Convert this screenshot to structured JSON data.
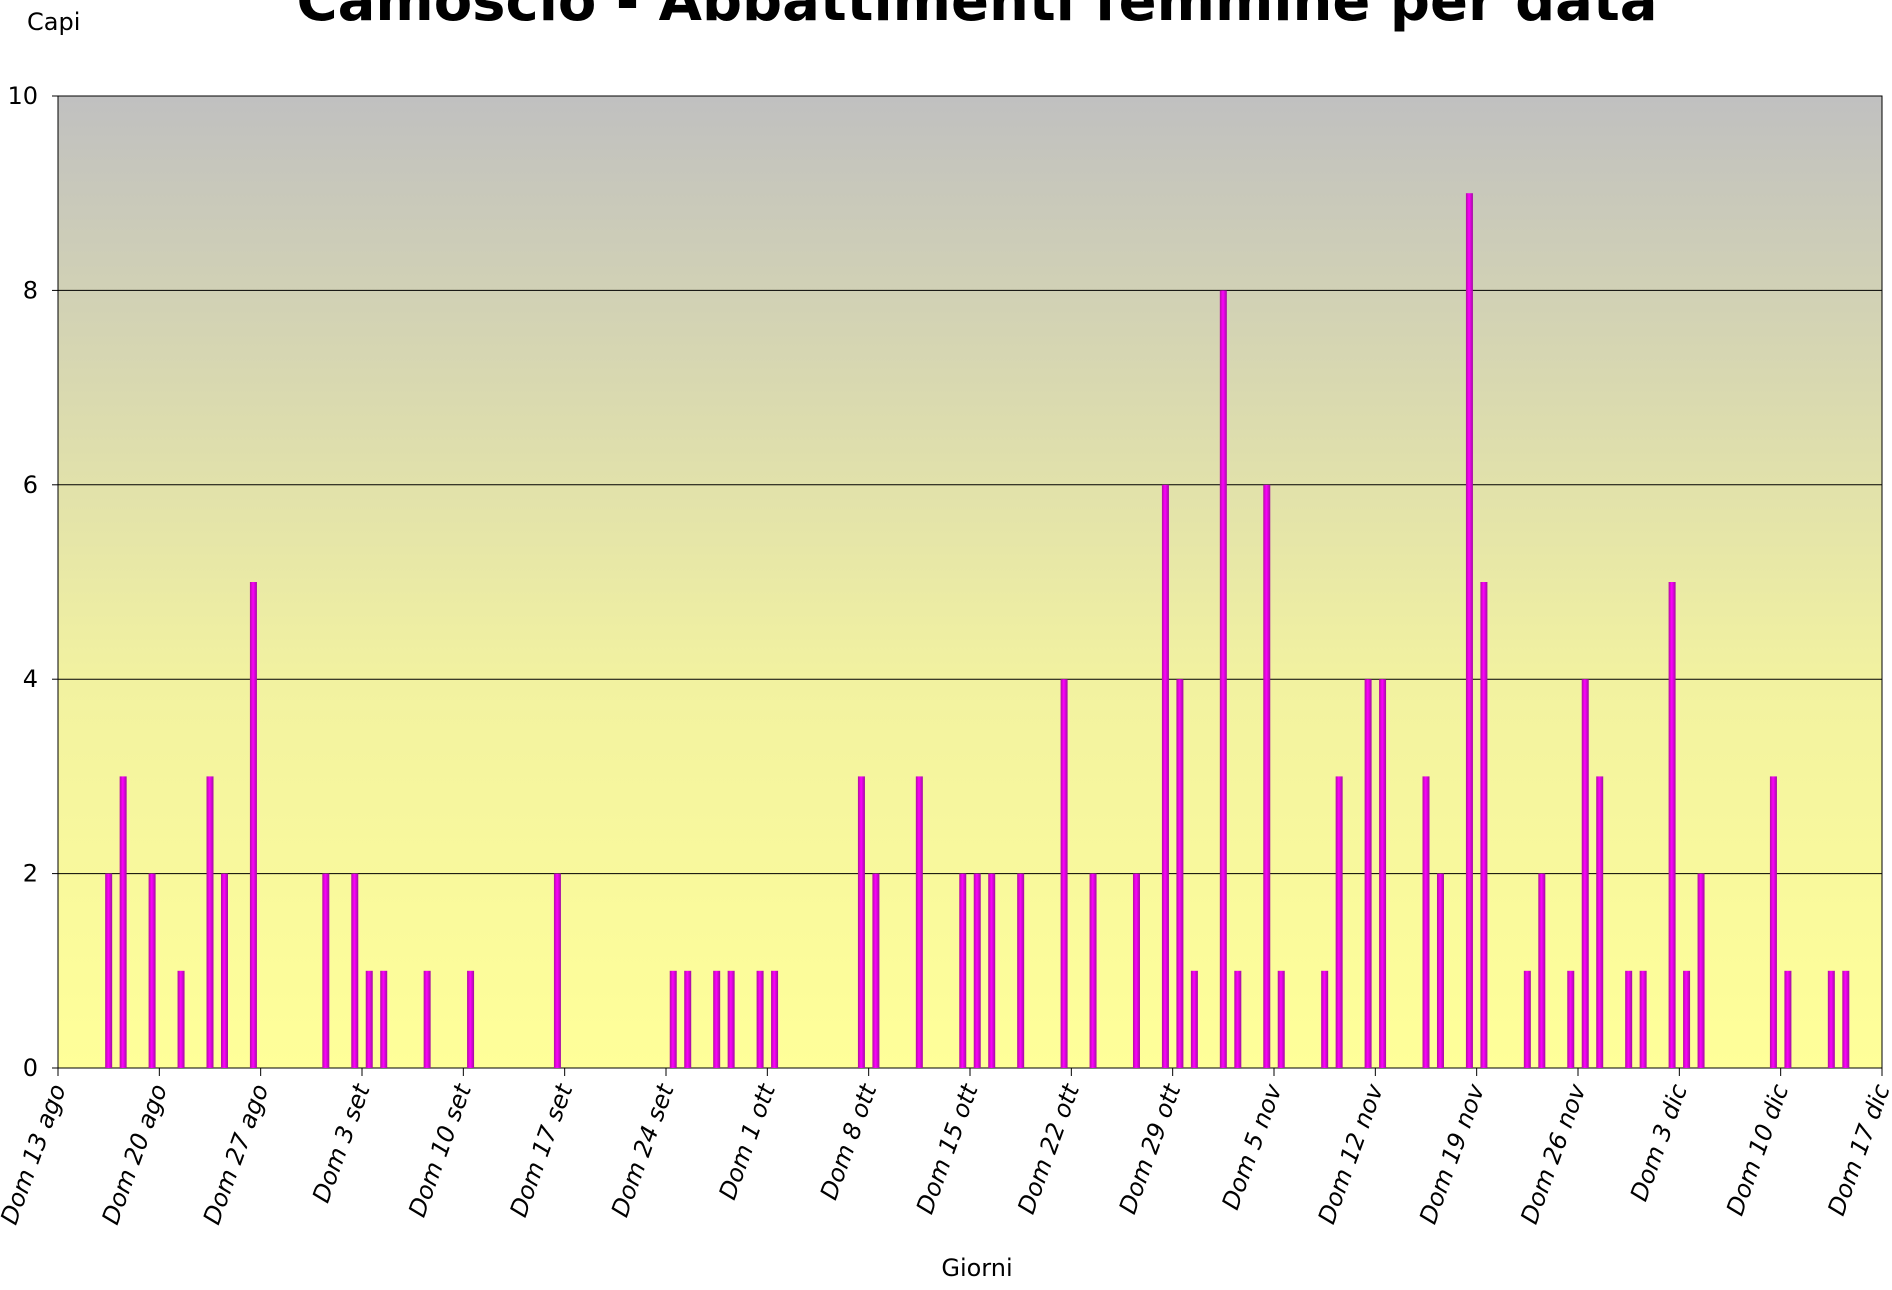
{
  "chart_data": {
    "type": "bar",
    "title": "Camoscio - Abbattimenti femmine per data",
    "y_label": "Capi",
    "x_label": "Giorni",
    "xlim": [
      0,
      126
    ],
    "xticks": [
      {
        "value": 0,
        "label": "Dom 13 ago"
      },
      {
        "value": 7,
        "label": "Dom 20 ago"
      },
      {
        "value": 14,
        "label": "Dom 27 ago"
      },
      {
        "value": 21,
        "label": "Dom 3 set"
      },
      {
        "value": 28,
        "label": "Dom 10 set"
      },
      {
        "value": 35,
        "label": "Dom 17 set"
      },
      {
        "value": 42,
        "label": "Dom 24 set"
      },
      {
        "value": 49,
        "label": "Dom 1 ott"
      },
      {
        "value": 56,
        "label": "Dom 8 ott"
      },
      {
        "value": 63,
        "label": "Dom 15 ott"
      },
      {
        "value": 70,
        "label": "Dom 22 ott"
      },
      {
        "value": 77,
        "label": "Dom 29 ott"
      },
      {
        "value": 84,
        "label": "Dom 5 nov"
      },
      {
        "value": 91,
        "label": "Dom 12 nov"
      },
      {
        "value": 98,
        "label": "Dom 19 nov"
      },
      {
        "value": 105,
        "label": "Dom 26 nov"
      },
      {
        "value": 112,
        "label": "Dom 3 dic"
      },
      {
        "value": 119,
        "label": "Dom 10 dic"
      },
      {
        "value": 126,
        "label": "Dom 17 dic"
      }
    ],
    "ylim": [
      0,
      10
    ],
    "yticks": [
      0,
      2,
      4,
      6,
      8,
      10
    ],
    "grid": true,
    "x": [
      3.5,
      4.5,
      6.5,
      8.5,
      10.5,
      11.5,
      13.5,
      18.5,
      20.5,
      21.5,
      22.5,
      25.5,
      28.5,
      34.5,
      42.5,
      43.5,
      45.5,
      46.5,
      48.5,
      49.5,
      55.5,
      56.5,
      59.5,
      62.5,
      63.5,
      64.5,
      66.5,
      69.5,
      71.5,
      74.5,
      76.5,
      77.5,
      78.5,
      80.5,
      81.5,
      83.5,
      84.5,
      87.5,
      88.5,
      90.5,
      91.5,
      94.5,
      95.5,
      97.5,
      98.5,
      101.5,
      102.5,
      104.5,
      105.5,
      106.5,
      108.5,
      109.5,
      111.5,
      112.5,
      113.5,
      118.5,
      119.5,
      122.5,
      123.5
    ],
    "values": [
      2,
      3,
      2,
      1,
      3,
      2,
      5,
      2,
      2,
      1,
      1,
      1,
      1,
      2,
      1,
      1,
      1,
      1,
      1,
      1,
      3,
      2,
      3,
      2,
      2,
      2,
      2,
      4,
      2,
      2,
      6,
      4,
      1,
      8,
      1,
      6,
      1,
      1,
      3,
      4,
      4,
      3,
      2,
      9,
      5,
      1,
      2,
      1,
      4,
      3,
      1,
      1,
      5,
      1,
      2,
      3,
      1,
      1,
      1
    ],
    "color": "#ff00ff"
  }
}
